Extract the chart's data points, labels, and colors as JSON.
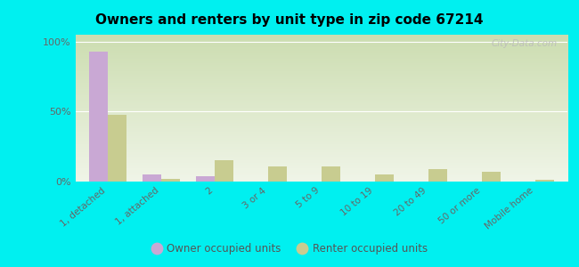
{
  "title": "Owners and renters by unit type in zip code 67214",
  "categories": [
    "1, detached",
    "1, attached",
    "2",
    "3 or 4",
    "5 to 9",
    "10 to 19",
    "20 to 49",
    "50 or more",
    "Mobile home"
  ],
  "owner_values": [
    93,
    5,
    4,
    0,
    0,
    0,
    0,
    0,
    0
  ],
  "renter_values": [
    48,
    2,
    15,
    11,
    11,
    5,
    9,
    7,
    1
  ],
  "owner_color": "#c9a8d4",
  "renter_color": "#c8cc90",
  "background_color": "#00f0f0",
  "grad_top": "#ccddb0",
  "grad_bottom": "#f0f5e8",
  "ylabel_ticks": [
    0,
    50,
    100
  ],
  "ylim": [
    0,
    105
  ],
  "watermark": "City-Data.com",
  "legend_owner": "Owner occupied units",
  "legend_renter": "Renter occupied units",
  "bar_width": 0.35
}
